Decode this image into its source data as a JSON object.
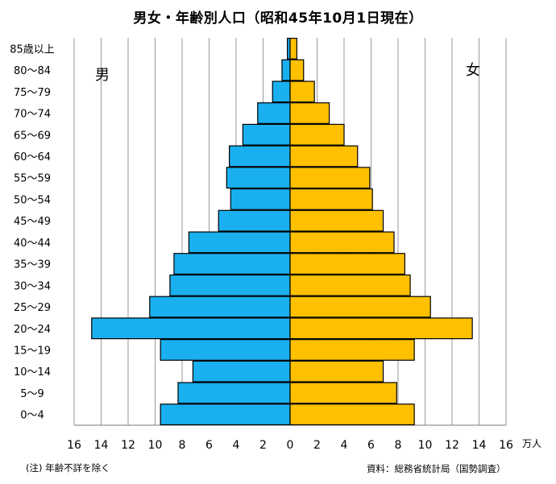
{
  "chart_data": {
    "type": "bar",
    "orientation": "horizontal-diverging",
    "title": "男女・年齢別人口（昭和45年10月1日現在）",
    "unit": "万人",
    "categories": [
      "0〜4",
      "5〜9",
      "10〜14",
      "15〜19",
      "20〜24",
      "25〜29",
      "30〜34",
      "35〜39",
      "40〜44",
      "45〜49",
      "50〜54",
      "55〜59",
      "60〜64",
      "65〜69",
      "70〜74",
      "75〜79",
      "80〜84",
      "85歳以上"
    ],
    "series": [
      {
        "name": "男",
        "color": "#1AB0F0",
        "side": "left",
        "values": [
          9.6,
          8.3,
          7.2,
          9.6,
          14.7,
          10.4,
          8.9,
          8.6,
          7.5,
          5.3,
          4.4,
          4.7,
          4.5,
          3.5,
          2.4,
          1.3,
          0.6,
          0.2
        ]
      },
      {
        "name": "女",
        "color": "#FFC000",
        "side": "right",
        "values": [
          9.2,
          7.9,
          6.9,
          9.2,
          13.5,
          10.4,
          8.9,
          8.5,
          7.7,
          6.9,
          6.1,
          5.9,
          5.0,
          4.0,
          2.9,
          1.8,
          1.0,
          0.5
        ]
      }
    ],
    "xlim": [
      -16,
      16
    ],
    "x_ticks": [
      "16",
      "14",
      "12",
      "10",
      "8",
      "6",
      "4",
      "2",
      "0",
      "2",
      "4",
      "6",
      "8",
      "10",
      "12",
      "14",
      "16"
    ],
    "grid": "vertical"
  },
  "notes": {
    "left": "(注) 年齢不詳を除く",
    "right": "資料：総務省統計局（国勢調査）"
  }
}
